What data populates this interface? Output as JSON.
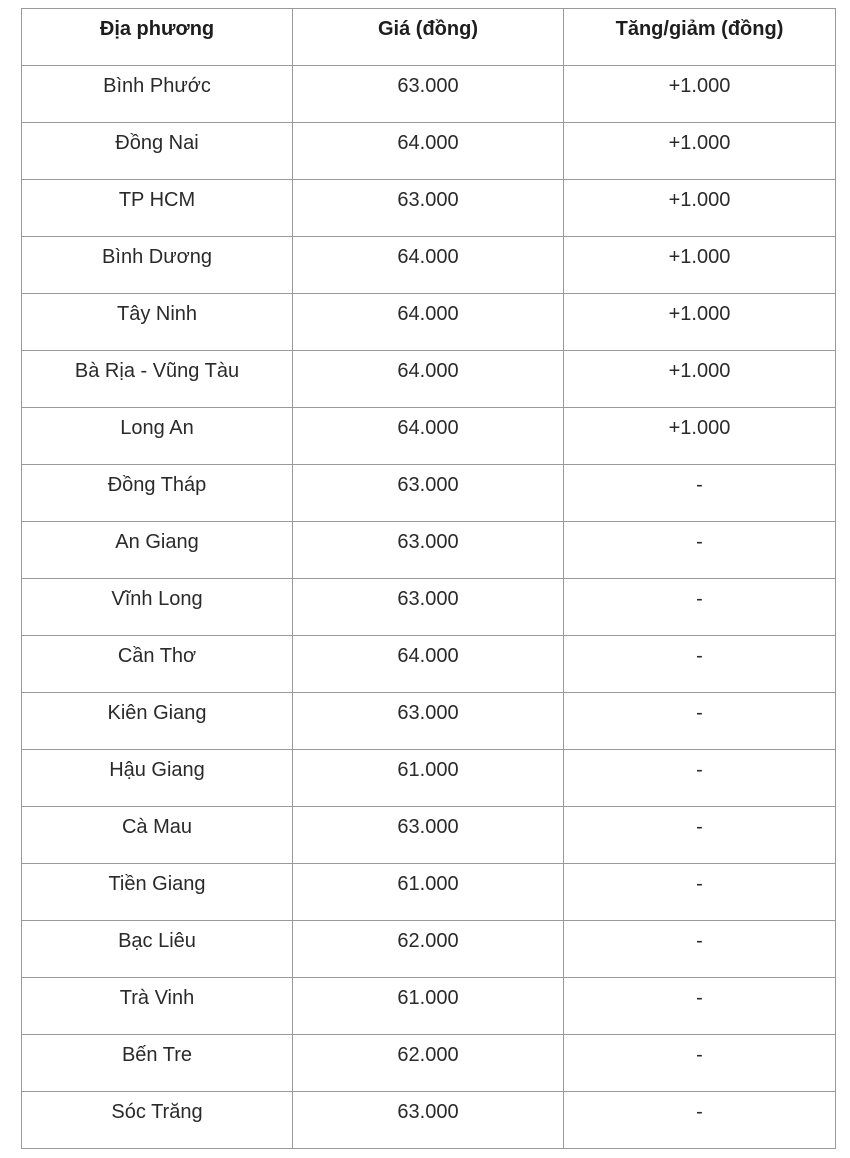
{
  "table": {
    "headers": [
      "Địa phương",
      "Giá (đồng)",
      "Tăng/giảm (đồng)"
    ],
    "rows": [
      [
        "Bình Phước",
        "63.000",
        "+1.000"
      ],
      [
        "Đồng Nai",
        "64.000",
        "+1.000"
      ],
      [
        "TP HCM",
        "63.000",
        "+1.000"
      ],
      [
        "Bình Dương",
        "64.000",
        "+1.000"
      ],
      [
        "Tây Ninh",
        "64.000",
        "+1.000"
      ],
      [
        "Bà Rịa - Vũng Tàu",
        "64.000",
        "+1.000"
      ],
      [
        "Long An",
        "64.000",
        "+1.000"
      ],
      [
        "Đồng Tháp",
        "63.000",
        "-"
      ],
      [
        "An Giang",
        "63.000",
        "-"
      ],
      [
        "Vĩnh Long",
        "63.000",
        "-"
      ],
      [
        "Cần Thơ",
        "64.000",
        "-"
      ],
      [
        "Kiên Giang",
        "63.000",
        "-"
      ],
      [
        "Hậu Giang",
        "61.000",
        "-"
      ],
      [
        "Cà Mau",
        "63.000",
        "-"
      ],
      [
        "Tiền Giang",
        "61.000",
        "-"
      ],
      [
        "Bạc Liêu",
        "62.000",
        "-"
      ],
      [
        "Trà Vinh",
        "61.000",
        "-"
      ],
      [
        "Bến Tre",
        "62.000",
        "-"
      ],
      [
        "Sóc Trăng",
        "63.000",
        "-"
      ]
    ]
  }
}
